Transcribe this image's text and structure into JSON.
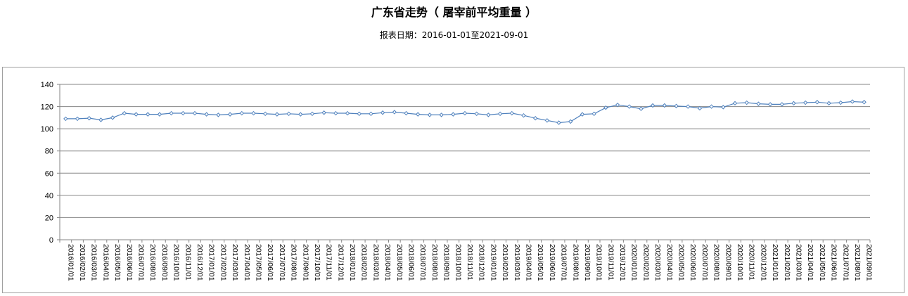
{
  "title": "广东省走势（ 屠宰前平均重量 ）",
  "subtitle": "报表日期：2016-01-01至2021-09-01",
  "chart_data": {
    "type": "line",
    "title": "广东省走势（ 屠宰前平均重量 ）",
    "subtitle": "报表日期：2016-01-01至2021-09-01",
    "xlabel": "",
    "ylabel": "",
    "ylim": [
      0,
      140
    ],
    "yticks": [
      0,
      20,
      40,
      60,
      80,
      100,
      120,
      140
    ],
    "grid": true,
    "legend": "none",
    "color": "#4f81bd",
    "categories": [
      "2016/01/01",
      "2016/02/01",
      "2016/03/01",
      "2016/04/01",
      "2016/05/01",
      "2016/06/01",
      "2016/07/01",
      "2016/08/01",
      "2016/09/01",
      "2016/10/01",
      "2016/11/01",
      "2016/12/01",
      "2017/01/01",
      "2017/02/01",
      "2017/03/01",
      "2017/04/01",
      "2017/05/01",
      "2017/06/01",
      "2017/07/01",
      "2017/08/01",
      "2017/09/01",
      "2017/10/01",
      "2017/11/01",
      "2017/12/01",
      "2018/01/01",
      "2018/02/01",
      "2018/03/01",
      "2018/04/01",
      "2018/05/01",
      "2018/06/01",
      "2018/07/01",
      "2018/08/01",
      "2018/09/01",
      "2018/10/01",
      "2018/11/01",
      "2018/12/01",
      "2019/01/01",
      "2019/02/01",
      "2019/03/01",
      "2019/04/01",
      "2019/05/01",
      "2019/06/01",
      "2019/07/01",
      "2019/08/01",
      "2019/09/01",
      "2019/10/01",
      "2019/11/01",
      "2019/12/01",
      "2020/01/01",
      "2020/02/01",
      "2020/03/01",
      "2020/04/01",
      "2020/05/01",
      "2020/06/01",
      "2020/07/01",
      "2020/08/01",
      "2020/09/01",
      "2020/10/01",
      "2020/11/01",
      "2020/12/01",
      "2021/01/01",
      "2021/02/01",
      "2021/03/01",
      "2021/04/01",
      "2021/05/01",
      "2021/06/01",
      "2021/07/01",
      "2021/08/01",
      "2021/09/01"
    ],
    "values": [
      109,
      109,
      109.5,
      108,
      110,
      114,
      113,
      113,
      113,
      114,
      114,
      114,
      113,
      112.5,
      113,
      114,
      114,
      113.5,
      113,
      113.5,
      113,
      113.5,
      114.5,
      114,
      114,
      113.5,
      113.5,
      114.5,
      115,
      114,
      113,
      112.5,
      112.5,
      113,
      114,
      113.5,
      112.5,
      113.5,
      114,
      112,
      109.5,
      107.5,
      105.5,
      106.5,
      113,
      113.5,
      119,
      121.5,
      120,
      118,
      121,
      121,
      120.5,
      120,
      118.5,
      120,
      119.5,
      123,
      123.5,
      122.5,
      122,
      122,
      123,
      123.5,
      124,
      123,
      123.5,
      124.5,
      124
    ]
  }
}
